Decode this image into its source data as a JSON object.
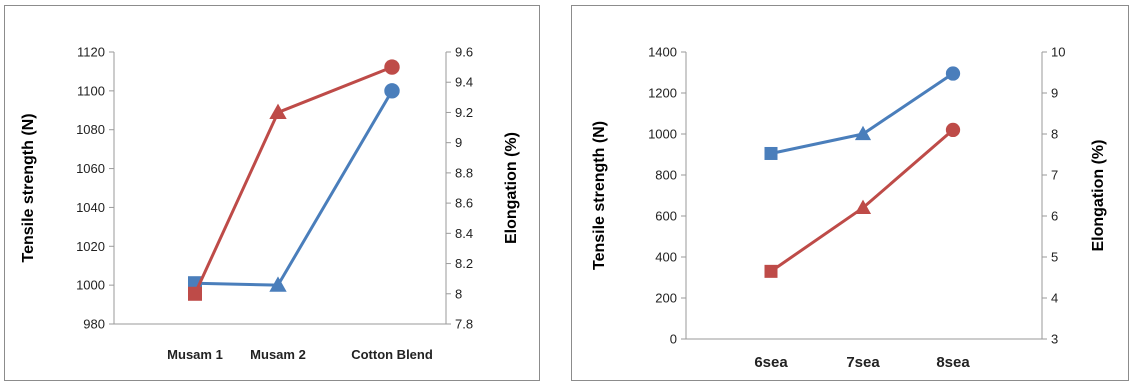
{
  "chart_data": [
    {
      "type": "line",
      "categories": [
        "Musam 1",
        "Musam 2",
        "Cotton Blend"
      ],
      "ylabel": "Tensile strength (N)",
      "y2label": "Elongation (%)",
      "ylim": [
        980,
        1120
      ],
      "yticks": [
        "980",
        "1000",
        "1020",
        "1040",
        "1060",
        "1080",
        "1100",
        "1120"
      ],
      "y2lim": [
        7.8,
        9.6
      ],
      "y2ticks": [
        "7.8",
        "8",
        "8.2",
        "8.4",
        "8.6",
        "8.8",
        "9",
        "9.2",
        "9.4",
        "9.6"
      ],
      "grid": false,
      "series": [
        {
          "axis": "left",
          "color": "#4a7ebb",
          "markers": [
            "square",
            "triangle",
            "circle"
          ],
          "values": [
            1001,
            1000,
            1100
          ]
        },
        {
          "axis": "right",
          "color": "#be4b48",
          "markers": [
            "square",
            "triangle",
            "circle"
          ],
          "values": [
            8.0,
            9.2,
            9.5
          ]
        }
      ]
    },
    {
      "type": "line",
      "categories": [
        "6sea",
        "7sea",
        "8sea"
      ],
      "ylabel": "Tensile strength (N)",
      "y2label": "Elongation (%)",
      "ylim": [
        0,
        1400
      ],
      "yticks": [
        "0",
        "200",
        "400",
        "600",
        "800",
        "1000",
        "1200",
        "1400"
      ],
      "y2lim": [
        3,
        10
      ],
      "y2ticks": [
        "3",
        "4",
        "5",
        "6",
        "7",
        "8",
        "9",
        "10"
      ],
      "grid": false,
      "series": [
        {
          "axis": "left",
          "color": "#4a7ebb",
          "markers": [
            "square",
            "triangle",
            "circle"
          ],
          "values": [
            905,
            1000,
            1295
          ]
        },
        {
          "axis": "right",
          "color": "#be4b48",
          "markers": [
            "square",
            "triangle",
            "circle"
          ],
          "values": [
            4.65,
            6.2,
            8.1
          ]
        }
      ]
    }
  ]
}
